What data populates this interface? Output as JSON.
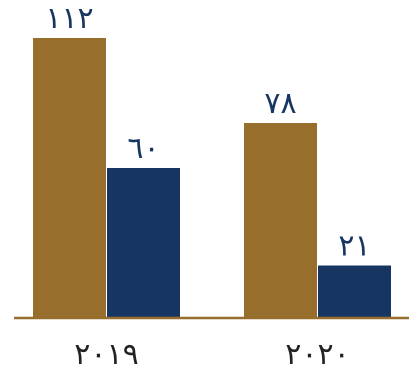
{
  "chart_data": {
    "type": "bar",
    "categories": [
      "٢٠١٩",
      "٢٠٢٠"
    ],
    "series": [
      {
        "values": [
          112,
          78
        ],
        "value_labels": [
          "١١٢",
          "٧٨"
        ],
        "color": "#976E2C"
      },
      {
        "values": [
          60,
          21
        ],
        "value_labels": [
          "٦٠",
          "٢١"
        ],
        "color": "#163661"
      }
    ],
    "ylim": [
      0,
      120
    ],
    "grid": false,
    "legend": "none",
    "colors": {
      "baseline": "#976E2C",
      "value_text": "#163661",
      "category_text": "#222222"
    }
  }
}
